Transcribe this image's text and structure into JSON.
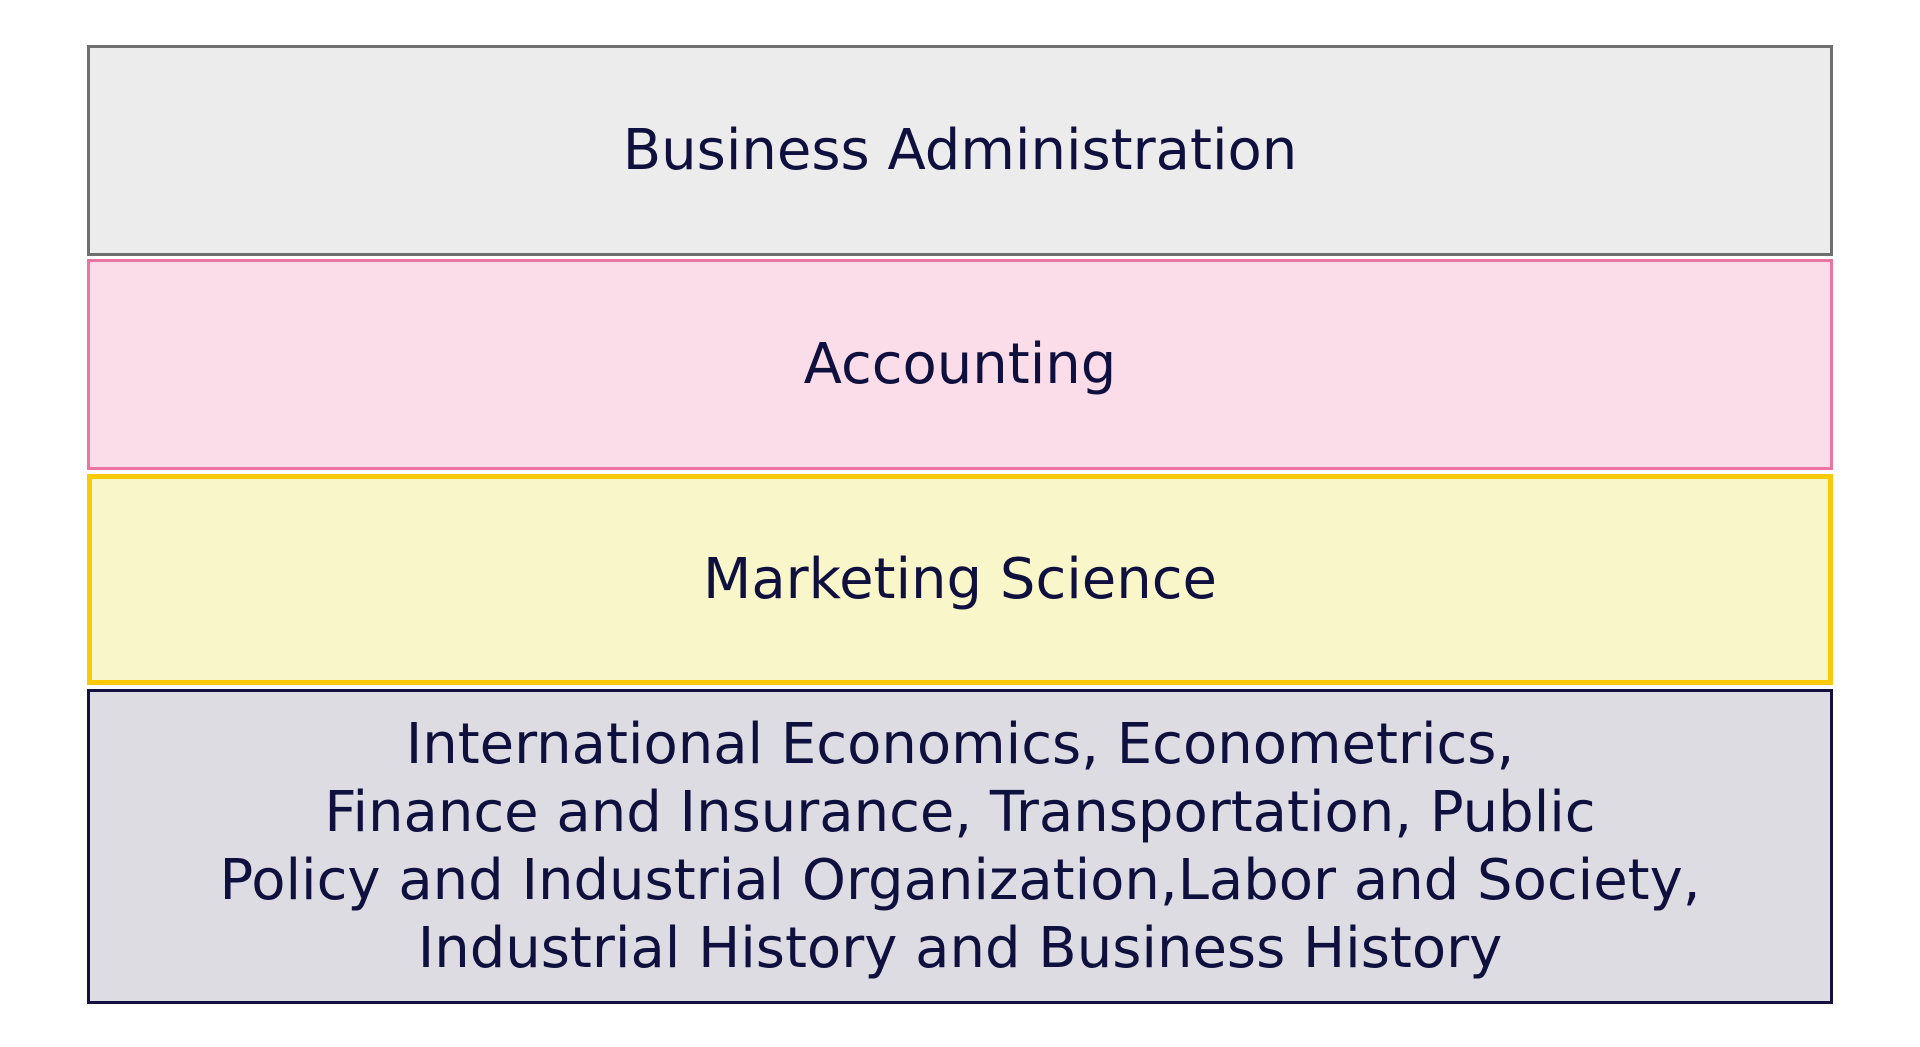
{
  "boxes": [
    {
      "label": "Business Administration",
      "fill": "#ececec",
      "border": "#6e6e6e"
    },
    {
      "label": "Accounting",
      "fill": "#fbdde9",
      "border": "#ec74a2"
    },
    {
      "label": "Marketing Science",
      "fill": "#f9f7c9",
      "border": "#f8ca08"
    },
    {
      "lines": [
        "International Economics, Econometrics,",
        "Finance and Insurance, Transportation, Public",
        "Policy and Industrial Organization,Labor and Society,",
        "Industrial History and Business History"
      ],
      "fill": "#dddce2",
      "border": "#14103f"
    }
  ],
  "text_color": "#10103f"
}
